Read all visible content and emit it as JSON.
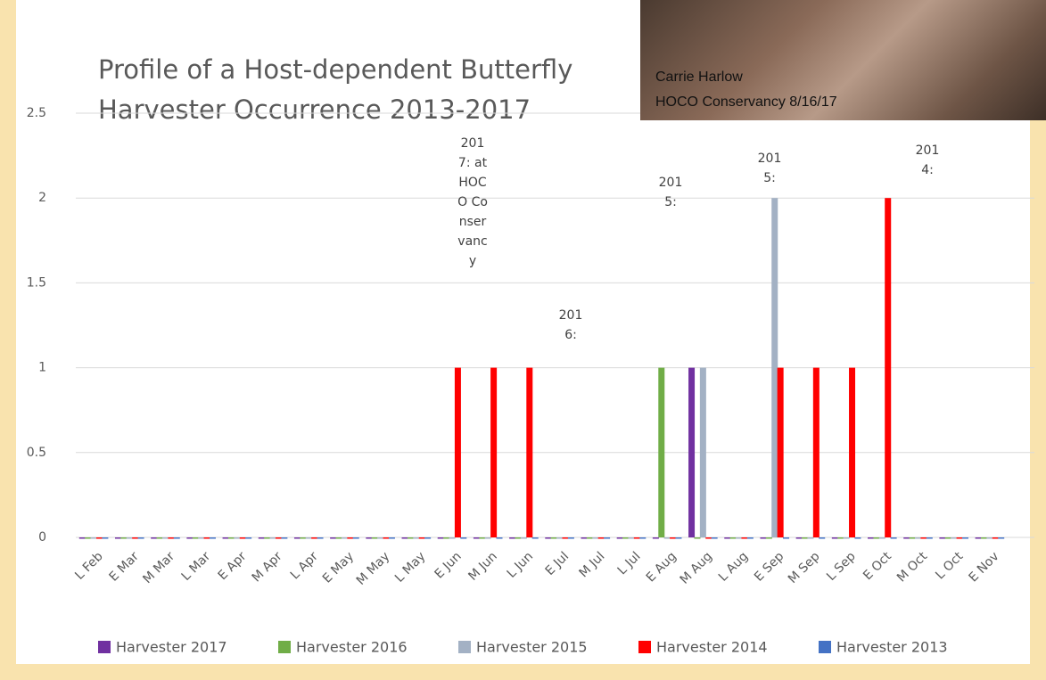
{
  "chart_data": {
    "type": "bar",
    "title": "Profile of a Host-dependent Butterfly Harvester Occurrence 2013-2017",
    "photo_caption": [
      "Carrie Harlow",
      "HOCO Conservancy 8/16/17"
    ],
    "categories": [
      "L Feb",
      "E Mar",
      "M Mar",
      "L Mar",
      "E Apr",
      "M Apr",
      "L Apr",
      "E May",
      "M May",
      "L May",
      "E Jun",
      "M Jun",
      "L Jun",
      "E Jul",
      "M Jul",
      "L Jul",
      "E Aug",
      "M Aug",
      "L Aug",
      "E Sep",
      "M Sep",
      "L Sep",
      "E Oct",
      "M Oct",
      "L Oct",
      "E Nov"
    ],
    "series": [
      {
        "name": "Harvester 2017",
        "color": "#7030a0",
        "values": [
          0,
          0,
          0,
          0,
          0,
          0,
          0,
          0,
          0,
          0,
          0,
          0,
          0,
          0,
          0,
          0,
          0,
          1,
          0,
          0,
          0,
          0,
          0,
          0,
          0,
          0
        ]
      },
      {
        "name": "Harvester 2016",
        "color": "#70ad47",
        "values": [
          0,
          0,
          0,
          0,
          0,
          0,
          0,
          0,
          0,
          0,
          0,
          0,
          0,
          0,
          0,
          0,
          1,
          0,
          0,
          0,
          0,
          0,
          0,
          0,
          0,
          0
        ]
      },
      {
        "name": "Harvester 2015",
        "color": "#a3b1c4",
        "values": [
          0,
          0,
          0,
          0,
          0,
          0,
          0,
          0,
          0,
          0,
          0,
          0,
          0,
          0,
          0,
          0,
          0,
          1,
          0,
          2,
          0,
          0,
          0,
          0,
          0,
          0
        ]
      },
      {
        "name": "Harvester 2014",
        "color": "#ff0000",
        "values": [
          0,
          0,
          0,
          0,
          0,
          0,
          0,
          0,
          0,
          0,
          1,
          1,
          1,
          0,
          0,
          0,
          0,
          0,
          0,
          1,
          1,
          1,
          2,
          0,
          0,
          0
        ]
      },
      {
        "name": "Harvester 2013",
        "color": "#4472c4",
        "values": [
          0,
          0,
          0,
          0,
          0,
          0,
          0,
          0,
          0,
          0,
          0,
          0,
          0,
          0,
          0,
          0,
          0,
          0,
          0,
          0,
          0,
          0,
          0,
          0,
          0,
          0
        ]
      }
    ],
    "annotations": [
      "2017: at HOCO Conservancy",
      "2016:",
      "2015:",
      "2015:",
      "2014:"
    ],
    "ylim": [
      0,
      2.5
    ],
    "yticks": [
      0,
      0.5,
      1,
      1.5,
      2,
      2.5
    ],
    "grid": true
  }
}
